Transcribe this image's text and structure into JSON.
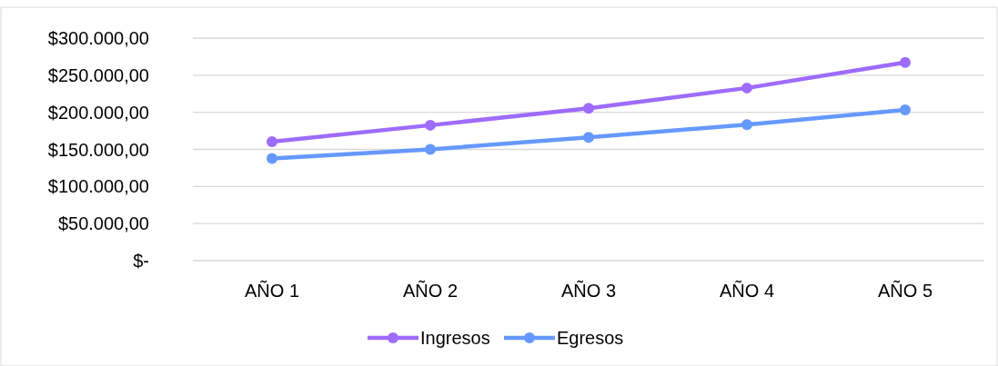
{
  "chart_data": {
    "type": "line",
    "categories": [
      "AÑO 1",
      "AÑO 2",
      "AÑO 3",
      "AÑO 4",
      "AÑO 5"
    ],
    "series": [
      {
        "name": "Ingresos",
        "color": "#9e6cfc",
        "values": [
          160500,
          182600,
          205500,
          232800,
          267200
        ]
      },
      {
        "name": "Egresos",
        "color": "#6699ff",
        "values": [
          137700,
          150000,
          166300,
          183500,
          203400
        ]
      }
    ],
    "ylim": [
      0,
      300000
    ],
    "yticks": [
      {
        "value": 0,
        "label": "$-"
      },
      {
        "value": 50000,
        "label": "$50.000,00"
      },
      {
        "value": 100000,
        "label": "$100.000,00"
      },
      {
        "value": 150000,
        "label": "$150.000,00"
      },
      {
        "value": 200000,
        "label": "$200.000,00"
      },
      {
        "value": 250000,
        "label": "$250.000,00"
      },
      {
        "value": 300000,
        "label": "$300.000,00"
      }
    ],
    "grid": "y",
    "legend": "bottom",
    "marker": "circle",
    "line_style": "solid"
  }
}
